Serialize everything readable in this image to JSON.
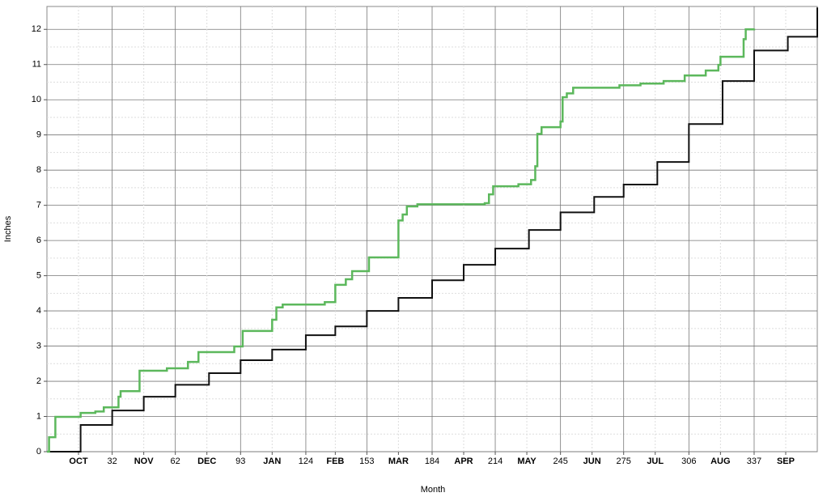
{
  "chart_data": {
    "type": "line",
    "drawstyle": "steps-post",
    "xlabel": "Month",
    "ylabel": "Inches",
    "xlim": [
      1,
      367
    ],
    "ylim": [
      0,
      12.65
    ],
    "xticks": [
      {
        "value": 16,
        "label": "OCT"
      },
      32,
      {
        "value": 47,
        "label": "NOV"
      },
      62,
      {
        "value": 77,
        "label": "DEC"
      },
      93,
      {
        "value": 108,
        "label": "JAN"
      },
      124,
      {
        "value": 138,
        "label": "FEB"
      },
      153,
      {
        "value": 168,
        "label": "MAR"
      },
      184,
      {
        "value": 199,
        "label": "APR"
      },
      214,
      {
        "value": 229,
        "label": "MAY"
      },
      245,
      {
        "value": 260,
        "label": "JUN"
      },
      275,
      {
        "value": 290,
        "label": "JUL"
      },
      306,
      {
        "value": 321,
        "label": "AUG"
      },
      337,
      {
        "value": 352,
        "label": "SEP"
      }
    ],
    "yticks": [
      0,
      1,
      2,
      3,
      4,
      5,
      6,
      7,
      8,
      9,
      10,
      11,
      12
    ],
    "grid": true,
    "series": [
      {
        "color": "#111111",
        "x": [
          1,
          17,
          32,
          47,
          62,
          78,
          93,
          108,
          124,
          138,
          153,
          168,
          184,
          199,
          214,
          230,
          245,
          261,
          275,
          291,
          306,
          322,
          337,
          353,
          367
        ],
        "values": [
          0,
          0.76,
          1.17,
          1.56,
          1.9,
          2.23,
          2.6,
          2.9,
          3.31,
          3.56,
          4.0,
          4.37,
          4.87,
          5.31,
          5.77,
          6.3,
          6.8,
          7.24,
          7.59,
          8.23,
          9.31,
          10.53,
          11.4,
          11.79,
          12.62
        ]
      },
      {
        "color": "#5cb85c",
        "x": [
          1,
          2,
          5,
          17,
          24,
          28,
          35,
          36,
          45,
          58,
          68,
          73,
          90,
          94,
          108,
          110,
          113,
          133,
          138,
          143,
          146,
          154,
          168,
          170,
          172,
          177,
          209,
          211,
          213,
          225,
          231,
          233,
          234,
          236,
          245,
          246,
          248,
          251,
          273,
          283,
          294,
          304,
          314,
          320,
          321,
          332,
          333,
          337
        ],
        "values": [
          0,
          0.41,
          0.99,
          1.1,
          1.14,
          1.26,
          1.56,
          1.72,
          2.3,
          2.37,
          2.55,
          2.83,
          2.99,
          3.43,
          3.75,
          4.1,
          4.18,
          4.25,
          4.74,
          4.9,
          5.13,
          5.52,
          6.57,
          6.74,
          6.97,
          7.03,
          7.06,
          7.31,
          7.54,
          7.6,
          7.72,
          8.11,
          9.03,
          9.22,
          9.38,
          10.07,
          10.18,
          10.34,
          10.41,
          10.46,
          10.53,
          10.69,
          10.83,
          10.99,
          11.22,
          11.72,
          12.0,
          12.02
        ]
      }
    ]
  }
}
